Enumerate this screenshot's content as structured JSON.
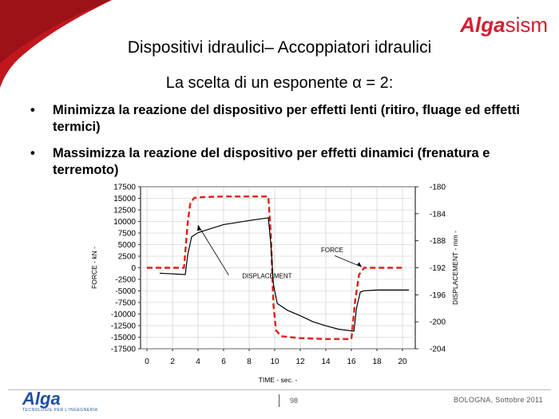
{
  "header": {
    "logo_alga": "Alga",
    "logo_sism": "sism"
  },
  "slide": {
    "title": "Dispositivi idraulici– Accoppiatori idraulici",
    "subtitle": "La scelta di un esponente α = 2:",
    "bullets": [
      "Minimizza la reazione del dispositivo per effetti lenti (ritiro, fluage ed effetti termici)",
      "Massimizza la reazione del dispositivo per effetti dinamici (frenatura e terremoto)"
    ]
  },
  "chart_data": {
    "type": "line",
    "xlabel": "TIME - sec. -",
    "ylabel": "FORCE - kN -",
    "y2label": "DISPLACEMENT - mm -",
    "xlim": [
      -0.5,
      21
    ],
    "ylim": [
      -17500,
      17500
    ],
    "y2lim": [
      -204,
      -180
    ],
    "x_ticks": [
      0,
      2,
      4,
      6,
      8,
      10,
      12,
      14,
      16,
      18,
      20
    ],
    "y_ticks": [
      17500,
      15000,
      12500,
      10000,
      7500,
      5000,
      2500,
      0,
      -2500,
      -5000,
      -7500,
      -10000,
      -12500,
      -15000,
      -17500
    ],
    "y2_ticks": [
      -180,
      -184,
      -188,
      -192,
      -196,
      -200,
      -204
    ],
    "grid": true,
    "series": [
      {
        "name": "FORCE",
        "axis": "left",
        "color": "#e0201c",
        "style": "dashed",
        "x": [
          0,
          2.9,
          3.2,
          3.4,
          3.7,
          4.5,
          6,
          8,
          9.5,
          9.7,
          9.9,
          10.1,
          10.5,
          12,
          14,
          16,
          16.3,
          16.6,
          17,
          17.5,
          20
        ],
        "y": [
          0,
          0,
          10000,
          14000,
          15100,
          15300,
          15400,
          15400,
          15400,
          7000,
          -8000,
          -13500,
          -14800,
          -15200,
          -15400,
          -15400,
          -7000,
          -1500,
          0,
          0,
          0
        ]
      },
      {
        "name": "DISPLACEMENT",
        "axis": "right",
        "color": "#000000",
        "style": "solid",
        "x": [
          1,
          3,
          3.2,
          3.5,
          4,
          5,
          6,
          8,
          9.5,
          9.7,
          9.9,
          10.2,
          11,
          12,
          13,
          14,
          15,
          16.2,
          16.4,
          16.7,
          17,
          18,
          20.5
        ],
        "y": [
          -192.8,
          -193,
          -190,
          -187.4,
          -186.8,
          -186.2,
          -185.6,
          -185,
          -184.6,
          -188.5,
          -194.5,
          -197.3,
          -198.3,
          -199.1,
          -200,
          -200.6,
          -201.1,
          -201.4,
          -198,
          -195.6,
          -195.4,
          -195.3,
          -195.3
        ]
      }
    ],
    "annotations": [
      {
        "text": "FORCE",
        "x": 14.5,
        "y": 3400
      },
      {
        "text": "DISPLACEMENT",
        "x": 9.4,
        "y": -2200
      }
    ]
  },
  "footer": {
    "logo": "Alga",
    "tagline": "TECNOLOGIE PER L'INGEGNERIA",
    "page": "98",
    "location": "BOLOGNA, Sottobre 2011"
  },
  "colors": {
    "brand_red": "#d2202f",
    "brand_blue": "#1f4fa3"
  }
}
